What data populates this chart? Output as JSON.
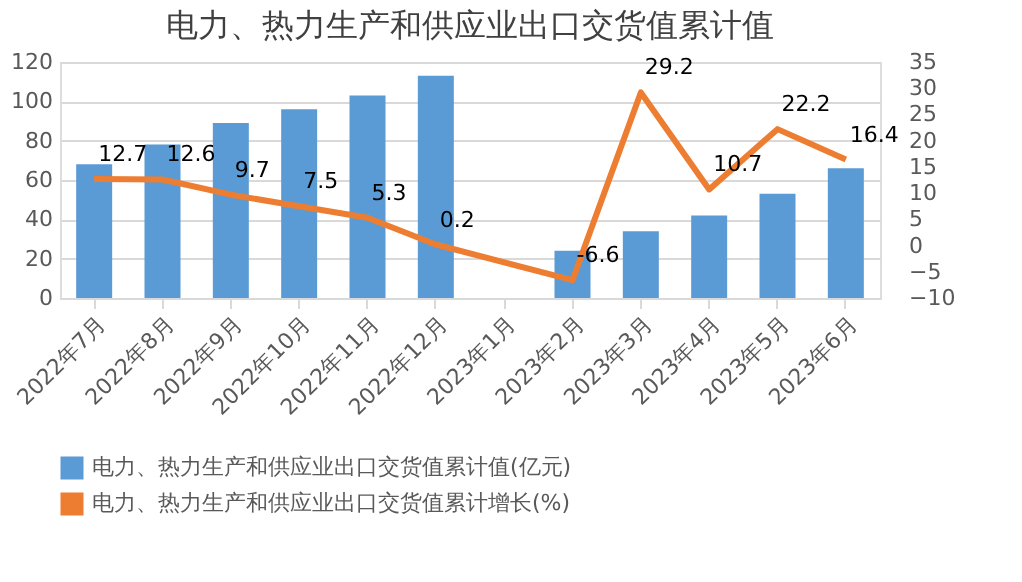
{
  "chart_data": {
    "type": "bar",
    "title": "电力、热力生产和供应业出口交货值累计值",
    "categories": [
      "2022年7月",
      "2022年8月",
      "2022年9月",
      "2022年10月",
      "2022年11月",
      "2022年12月",
      "2023年1月",
      "2023年2月",
      "2023年3月",
      "2023年4月",
      "2023年5月",
      "2023年6月"
    ],
    "series": [
      {
        "name": "电力、热力生产和供应业出口交货值累计值(亿元)",
        "color": "#5b9bd5",
        "values": [
          68,
          78,
          89,
          96,
          103,
          113,
          null,
          24,
          34,
          42,
          53,
          66
        ]
      },
      {
        "name": "电力、热力生产和供应业出口交货值累计增长(%)",
        "color": "#ed7d31",
        "type": "line",
        "axis": "y2",
        "data_labels": true,
        "values": [
          12.7,
          12.6,
          9.7,
          7.5,
          5.3,
          0.2,
          null,
          -6.6,
          29.2,
          10.7,
          22.2,
          16.4
        ]
      }
    ],
    "ylim": [
      0,
      120
    ],
    "yticks": [
      0,
      20,
      40,
      60,
      80,
      100,
      120
    ],
    "y2lim": [
      -10,
      35
    ],
    "y2ticks": [
      -10,
      -5,
      0,
      5,
      10,
      15,
      20,
      25,
      30,
      35
    ],
    "grid": "y",
    "legend": "bottom"
  }
}
